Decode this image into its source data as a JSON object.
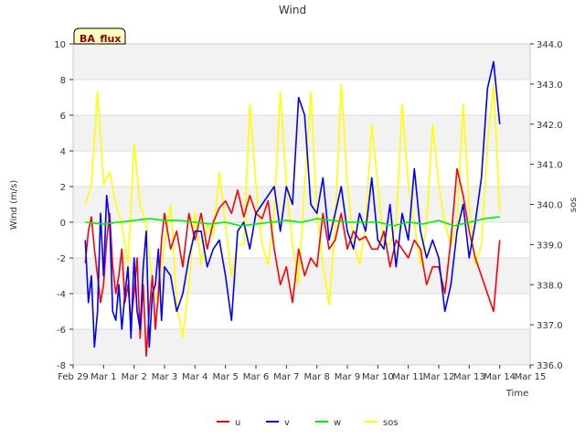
{
  "chart_data": {
    "type": "line",
    "title": "Wind",
    "badge": "BA_flux",
    "xlabel": "Time",
    "ylabel": "Wind (m/s)",
    "y2label": "sos",
    "x_ticks": [
      "Feb 29",
      "Mar 1",
      "Mar 2",
      "Mar 3",
      "Mar 4",
      "Mar 5",
      "Mar 6",
      "Mar 7",
      "Mar 8",
      "Mar 9",
      "Mar 10",
      "Mar 11",
      "Mar 12",
      "Mar 13",
      "Mar 14",
      "Mar 15"
    ],
    "xlim": [
      0,
      15
    ],
    "ylim": [
      -8,
      10
    ],
    "y_ticks": [
      -8,
      -6,
      -4,
      -2,
      0,
      2,
      4,
      6,
      8,
      10
    ],
    "y2lim": [
      336.0,
      344.0
    ],
    "y2_ticks": [
      "336.0",
      "337.0",
      "338.0",
      "339.0",
      "340.0",
      "341.0",
      "342.0",
      "343.0",
      "344.0"
    ],
    "grid": "horizontal bands",
    "legend_position": "bottom-center",
    "series": [
      {
        "name": "u",
        "axis": "left",
        "color": "#ff0000",
        "x": [
          0.4,
          0.5,
          0.6,
          0.7,
          0.8,
          0.9,
          1.0,
          1.1,
          1.2,
          1.3,
          1.4,
          1.5,
          1.6,
          1.7,
          1.8,
          1.9,
          2.0,
          2.1,
          2.2,
          2.3,
          2.4,
          2.5,
          2.6,
          2.7,
          2.8,
          2.9,
          3.0,
          3.2,
          3.4,
          3.6,
          3.8,
          4.0,
          4.2,
          4.4,
          4.6,
          4.8,
          5.0,
          5.2,
          5.4,
          5.6,
          5.8,
          6.0,
          6.2,
          6.4,
          6.6,
          6.8,
          7.0,
          7.2,
          7.4,
          7.6,
          7.8,
          8.0,
          8.2,
          8.4,
          8.6,
          8.8,
          9.0,
          9.2,
          9.4,
          9.6,
          9.8,
          10.0,
          10.2,
          10.4,
          10.6,
          10.8,
          11.0,
          11.2,
          11.4,
          11.6,
          11.8,
          12.0,
          12.2,
          12.4,
          12.6,
          12.8,
          13.0,
          13.2,
          13.4,
          13.6,
          13.8,
          14.0
        ],
        "y": [
          -2.3,
          -0.5,
          0.3,
          -1.5,
          -3.0,
          -4.5,
          -3.5,
          -1.0,
          0.5,
          -2.5,
          -4.0,
          -3.0,
          -1.5,
          -4.5,
          -3.5,
          -5.5,
          -4.0,
          -2.0,
          -6.5,
          -3.5,
          -7.5,
          -5.0,
          -3.0,
          -6.0,
          -4.0,
          -1.0,
          0.5,
          -1.5,
          -0.5,
          -2.5,
          0.5,
          -1.0,
          0.5,
          -1.5,
          0.0,
          0.8,
          1.2,
          0.5,
          1.8,
          0.3,
          1.5,
          0.5,
          0.2,
          1.2,
          -1.5,
          -3.5,
          -2.5,
          -4.5,
          -1.5,
          -3.0,
          -2.0,
          -2.5,
          0.5,
          -1.5,
          -1.0,
          0.5,
          -1.5,
          -0.5,
          -1.0,
          -0.8,
          -1.5,
          -1.5,
          -0.5,
          -2.5,
          -1.0,
          -1.5,
          -2.0,
          -1.0,
          -1.5,
          -3.5,
          -2.5,
          -2.5,
          -4.0,
          -1.0,
          3.0,
          1.5,
          -0.5,
          -2.0,
          -3.0,
          -4.0,
          -5.0,
          -1.0
        ]
      },
      {
        "name": "v",
        "axis": "left",
        "color": "#0000ff",
        "x": [
          0.4,
          0.5,
          0.6,
          0.7,
          0.8,
          0.9,
          1.0,
          1.1,
          1.2,
          1.3,
          1.4,
          1.5,
          1.6,
          1.7,
          1.8,
          1.9,
          2.0,
          2.1,
          2.2,
          2.3,
          2.4,
          2.5,
          2.6,
          2.7,
          2.8,
          2.9,
          3.0,
          3.2,
          3.4,
          3.6,
          3.8,
          4.0,
          4.2,
          4.4,
          4.6,
          4.8,
          5.0,
          5.2,
          5.4,
          5.6,
          5.8,
          6.0,
          6.2,
          6.4,
          6.6,
          6.8,
          7.0,
          7.2,
          7.4,
          7.6,
          7.8,
          8.0,
          8.2,
          8.4,
          8.6,
          8.8,
          9.0,
          9.2,
          9.4,
          9.6,
          9.8,
          10.0,
          10.2,
          10.4,
          10.6,
          10.8,
          11.0,
          11.2,
          11.4,
          11.6,
          11.8,
          12.0,
          12.2,
          12.4,
          12.6,
          12.8,
          13.0,
          13.2,
          13.4,
          13.6,
          13.8,
          14.0
        ],
        "y": [
          -1.0,
          -4.5,
          -3.0,
          -7.0,
          -5.0,
          0.5,
          -3.0,
          1.5,
          0.0,
          -5.0,
          -5.5,
          -3.5,
          -6.0,
          -4.0,
          -2.5,
          -6.5,
          -2.0,
          -5.0,
          -6.0,
          -2.5,
          -0.5,
          -7.0,
          -4.0,
          -3.5,
          -1.5,
          -5.5,
          -2.5,
          -3.0,
          -5.0,
          -4.0,
          -2.0,
          -0.5,
          -0.5,
          -2.5,
          -1.5,
          -1.0,
          -3.0,
          -5.5,
          -0.5,
          0.0,
          -1.5,
          0.5,
          1.0,
          1.5,
          2.0,
          -0.5,
          2.0,
          1.0,
          7.0,
          6.0,
          1.0,
          0.5,
          2.5,
          -1.0,
          0.5,
          2.0,
          -0.5,
          -1.5,
          0.5,
          -0.5,
          2.5,
          -1.0,
          -1.5,
          1.0,
          -2.5,
          0.5,
          -1.0,
          3.0,
          -0.5,
          -2.0,
          -1.0,
          -2.0,
          -5.0,
          -3.5,
          -0.5,
          1.0,
          -2.0,
          0.0,
          2.5,
          7.5,
          9.0,
          5.5
        ]
      },
      {
        "name": "w",
        "axis": "left",
        "color": "#00ee00",
        "x": [
          0.4,
          1.0,
          1.5,
          2.0,
          2.5,
          3.0,
          3.5,
          4.0,
          4.5,
          5.0,
          5.5,
          6.0,
          6.5,
          7.0,
          7.5,
          8.0,
          8.5,
          9.0,
          9.5,
          10.0,
          10.5,
          11.0,
          11.5,
          12.0,
          12.5,
          13.0,
          13.5,
          14.0
        ],
        "y": [
          0.0,
          -0.1,
          0.0,
          0.1,
          0.2,
          0.1,
          0.1,
          0.0,
          -0.1,
          0.0,
          -0.2,
          -0.1,
          0.0,
          0.1,
          0.0,
          0.2,
          0.1,
          0.0,
          0.0,
          0.0,
          -0.2,
          0.0,
          -0.1,
          0.1,
          -0.2,
          0.0,
          0.2,
          0.3
        ]
      },
      {
        "name": "sos",
        "axis": "right",
        "color": "#ffff00",
        "x": [
          0.4,
          0.6,
          0.8,
          1.0,
          1.2,
          1.4,
          1.6,
          1.8,
          2.0,
          2.2,
          2.4,
          2.6,
          2.8,
          3.0,
          3.2,
          3.4,
          3.6,
          3.8,
          4.0,
          4.2,
          4.4,
          4.6,
          4.8,
          5.0,
          5.2,
          5.4,
          5.6,
          5.8,
          6.0,
          6.2,
          6.4,
          6.6,
          6.8,
          7.0,
          7.2,
          7.4,
          7.6,
          7.8,
          8.0,
          8.2,
          8.4,
          8.6,
          8.8,
          9.0,
          9.2,
          9.4,
          9.6,
          9.8,
          10.0,
          10.2,
          10.4,
          10.6,
          10.8,
          11.0,
          11.2,
          11.4,
          11.6,
          11.8,
          12.0,
          12.2,
          12.4,
          12.6,
          12.8,
          13.0,
          13.2,
          13.4,
          13.6,
          13.8,
          14.0
        ],
        "y": [
          340.0,
          340.5,
          342.8,
          340.5,
          340.8,
          340.0,
          339.5,
          338.5,
          341.5,
          340.0,
          339.5,
          338.0,
          337.5,
          339.0,
          340.0,
          337.5,
          336.7,
          338.0,
          339.8,
          338.5,
          339.5,
          339.2,
          340.8,
          339.5,
          338.2,
          339.0,
          339.0,
          342.5,
          340.5,
          339.0,
          338.5,
          339.8,
          342.8,
          340.5,
          339.0,
          338.0,
          340.5,
          342.8,
          339.8,
          338.5,
          337.5,
          339.5,
          343.0,
          340.5,
          339.0,
          338.5,
          339.5,
          342.0,
          340.5,
          339.0,
          339.0,
          339.5,
          342.5,
          340.5,
          339.5,
          338.5,
          339.5,
          342.0,
          340.5,
          339.5,
          339.0,
          339.5,
          342.5,
          340.0,
          338.5,
          339.0,
          341.5,
          343.0,
          339.8
        ]
      }
    ]
  }
}
